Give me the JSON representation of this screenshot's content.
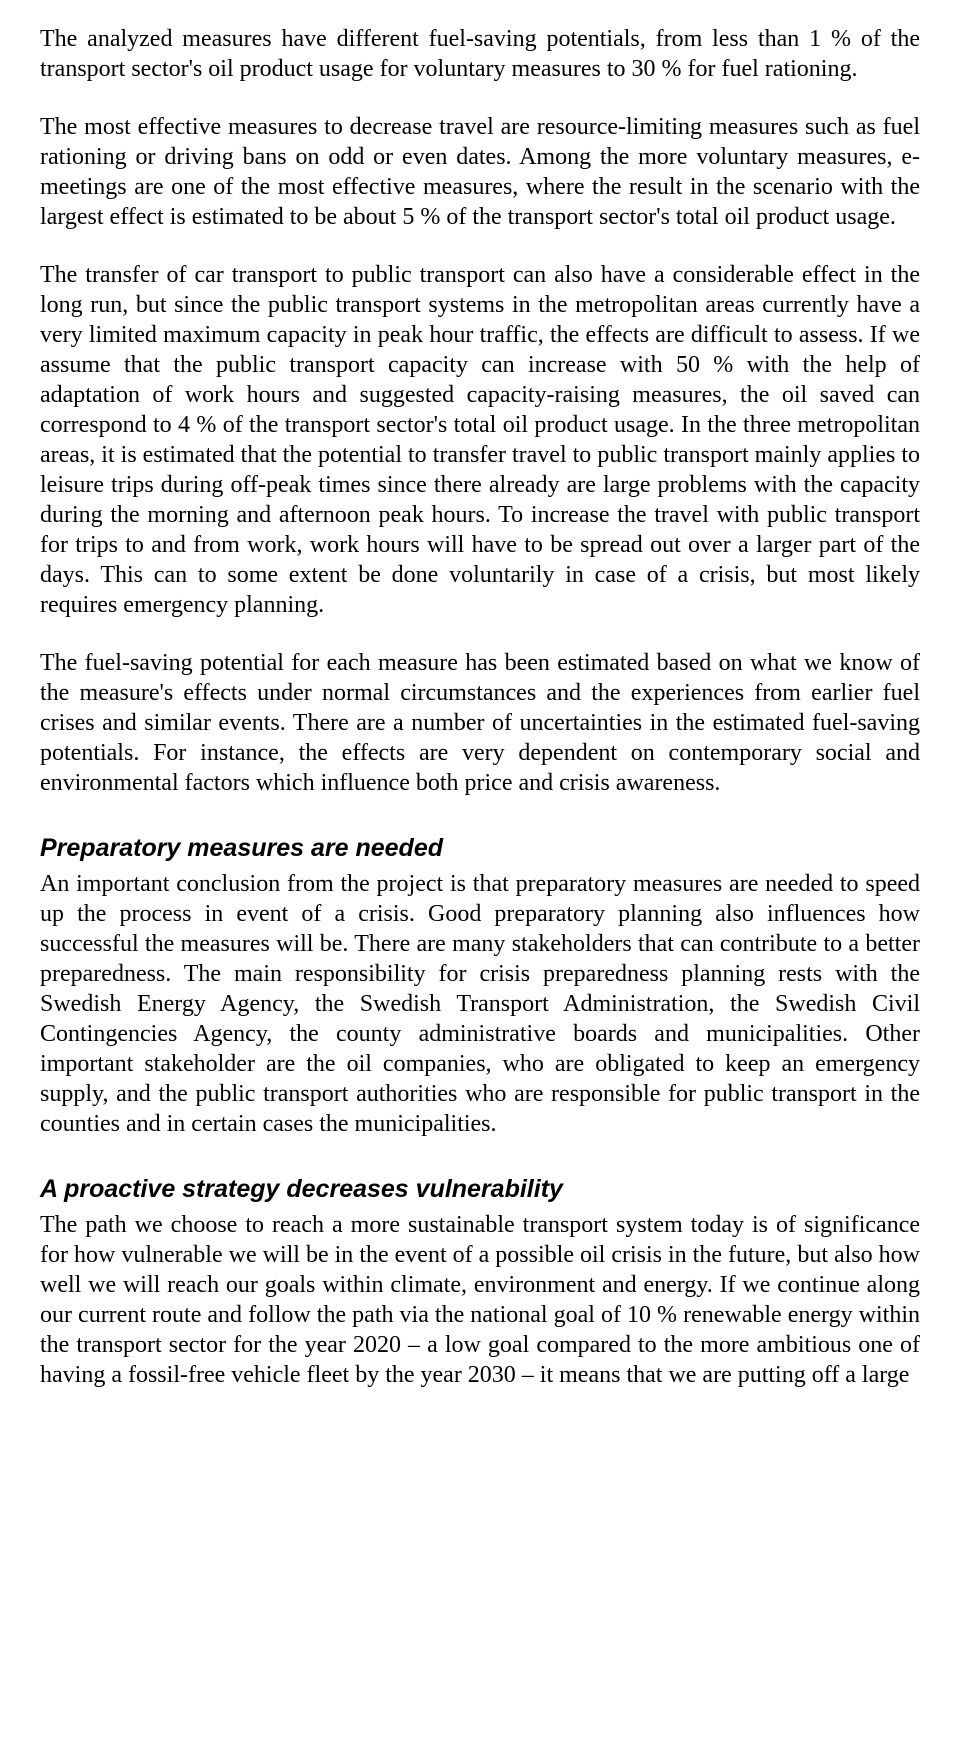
{
  "paragraphs": {
    "p1": "The analyzed measures have different fuel-saving potentials, from less than 1 % of the transport sector's oil product usage for voluntary measures to 30 % for fuel rationing.",
    "p2": "The most effective measures to decrease travel are resource-limiting measures such as fuel rationing or driving bans on odd or even dates. Among the more voluntary measures, e-meetings are one of the most effective measures, where the result in the scenario with the largest effect is estimated to be about 5 % of the transport sector's total oil product usage.",
    "p3": "The transfer of car transport to public transport can also have a considerable effect in the long run, but since the public transport systems in the metropolitan areas currently have a very limited maximum capacity in peak hour traffic, the effects are difficult to assess. If we assume that the public transport capacity can increase with 50 % with the help of adaptation of work hours and suggested capacity-raising measures, the oil saved can correspond to 4 % of the transport sector's total oil product usage. In the three metropolitan areas, it is estimated that the potential to transfer travel to public transport mainly applies to leisure trips during off-peak times since there already are large problems with the capacity during the morning and afternoon peak hours. To increase the travel with public transport for trips to and from work, work hours will have to be spread out over a larger part of the days. This can to some extent be done voluntarily in case of a crisis, but most likely requires emergency planning.",
    "p4": "The fuel-saving potential for each measure has been estimated based on what we know of the measure's effects under normal circumstances and the experiences from earlier fuel crises and similar events. There are a number of uncertainties in the estimated fuel-saving potentials. For instance, the effects are very dependent on contemporary social and environmental factors which influence both price and crisis awareness."
  },
  "sections": {
    "s1": {
      "heading": "Preparatory measures are needed",
      "body": "An important conclusion from the project is that preparatory measures are needed to speed up the process in event of a crisis. Good preparatory planning also influences how successful the measures will be. There are many stakeholders that can contribute to a better preparedness. The main responsibility for crisis preparedness planning rests with the Swedish Energy Agency, the Swedish Transport Administration, the Swedish Civil Contingencies Agency, the county administrative boards and municipalities. Other important stakeholder are the oil companies, who are obligated to keep an emergency supply, and the public transport authorities who are responsible for public transport in the counties and in certain cases the municipalities."
    },
    "s2": {
      "heading": "A proactive strategy decreases vulnerability",
      "body": "The path we choose to reach a more sustainable transport system today is of significance for how vulnerable we will be in the event of a possible oil crisis in the future, but also how well we will reach our goals within climate, environment and energy. If we continue along our current route and follow the path via the national goal of 10 % renewable energy within the transport sector for the year 2020 – a low goal compared to the more ambitious one of having a fossil-free vehicle fleet by the year 2030 – it means that we are putting off a large"
    }
  }
}
